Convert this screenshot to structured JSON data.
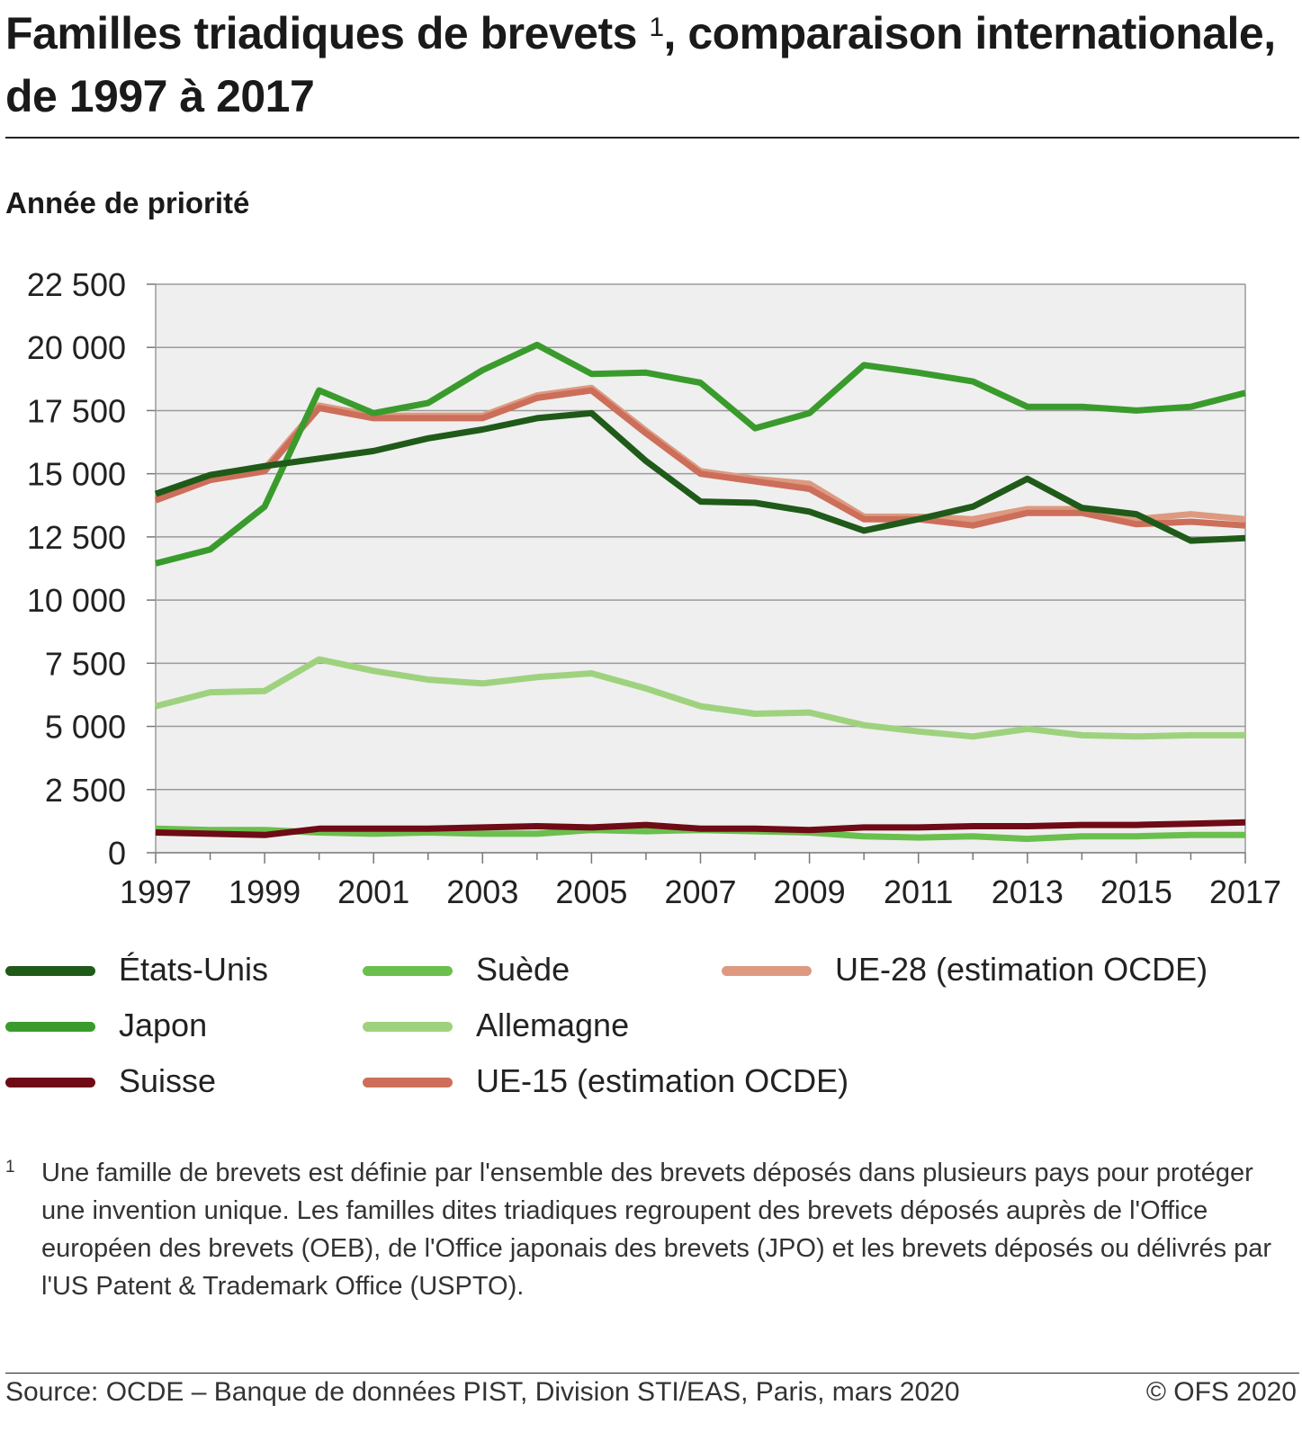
{
  "header": {
    "title_part1": "Familles triadiques de brevets ",
    "title_sup": "1",
    "title_part2": ", comparaison internationale, de 1997 à 2017",
    "subtitle": "Année de priorité"
  },
  "chart_data": {
    "type": "line",
    "ylim": [
      0,
      22500
    ],
    "y_ticks": [
      0,
      2500,
      5000,
      7500,
      10000,
      12500,
      15000,
      17500,
      20000,
      22500
    ],
    "y_tick_labels": [
      "0",
      "2 500",
      "5 000",
      "7 500",
      "10 000",
      "12 500",
      "15 000",
      "17 500",
      "20 000",
      "22 500"
    ],
    "x": [
      1997,
      1998,
      1999,
      2000,
      2001,
      2002,
      2003,
      2004,
      2005,
      2006,
      2007,
      2008,
      2009,
      2010,
      2011,
      2012,
      2013,
      2014,
      2015,
      2016,
      2017
    ],
    "x_tick_labels": [
      "1997",
      "1999",
      "2001",
      "2003",
      "2005",
      "2007",
      "2009",
      "2011",
      "2013",
      "2015",
      "2017"
    ],
    "grid": "horizontal",
    "legend_position": "bottom",
    "series": [
      {
        "name": "UE-28 (estimation OCDE)",
        "color": "#dd9a80",
        "values": [
          14000,
          14800,
          15200,
          17700,
          17300,
          17300,
          17300,
          18100,
          18400,
          16700,
          15100,
          14800,
          14600,
          13300,
          13300,
          13200,
          13600,
          13600,
          13200,
          13400,
          13200
        ]
      },
      {
        "name": "UE-15 (estimation OCDE)",
        "color": "#cc6e5a",
        "values": [
          13950,
          14750,
          15100,
          17600,
          17200,
          17200,
          17200,
          18000,
          18300,
          16600,
          15000,
          14700,
          14400,
          13200,
          13200,
          12950,
          13450,
          13450,
          13000,
          13100,
          12950
        ]
      },
      {
        "name": "Allemagne",
        "color": "#9fd27e",
        "values": [
          5800,
          6350,
          6400,
          7650,
          7200,
          6850,
          6700,
          6950,
          7100,
          6500,
          5800,
          5500,
          5550,
          5050,
          4800,
          4600,
          4900,
          4650,
          4600,
          4650,
          4650
        ]
      },
      {
        "name": "Suède",
        "color": "#6bbf4e",
        "values": [
          950,
          900,
          900,
          800,
          750,
          800,
          750,
          750,
          900,
          850,
          900,
          850,
          800,
          650,
          600,
          650,
          550,
          650,
          650,
          700,
          700
        ]
      },
      {
        "name": "Suisse",
        "color": "#6e0b16",
        "values": [
          800,
          750,
          700,
          950,
          950,
          950,
          1000,
          1050,
          1000,
          1100,
          950,
          950,
          900,
          1000,
          1000,
          1050,
          1050,
          1100,
          1100,
          1150,
          1200
        ]
      },
      {
        "name": "Japon",
        "color": "#3a9b2d",
        "values": [
          11450,
          12000,
          13700,
          18300,
          17400,
          17800,
          19100,
          20100,
          18950,
          19000,
          18600,
          16800,
          17400,
          19300,
          19000,
          18650,
          17650,
          17650,
          17500,
          17650,
          18200
        ]
      },
      {
        "name": "États-Unis",
        "color": "#1f5a19",
        "values": [
          14200,
          14950,
          15300,
          15600,
          15900,
          16400,
          16750,
          17200,
          17400,
          15500,
          13900,
          13850,
          13500,
          12750,
          13200,
          13700,
          14800,
          13650,
          13400,
          12350,
          12450
        ]
      }
    ]
  },
  "legend": [
    {
      "label": "États-Unis",
      "color": "#1f5a19"
    },
    {
      "label": "Japon",
      "color": "#3a9b2d"
    },
    {
      "label": "Suisse",
      "color": "#6e0b16"
    },
    {
      "label": "Suède",
      "color": "#6bbf4e"
    },
    {
      "label": "Allemagne",
      "color": "#9fd27e"
    },
    {
      "label": "UE-15 (estimation OCDE)",
      "color": "#cc6e5a"
    },
    {
      "label": "UE-28 (estimation OCDE)",
      "color": "#dd9a80"
    }
  ],
  "footnote": {
    "mark": "1",
    "text": "Une famille de brevets est définie par l'ensemble des brevets déposés dans plusieurs pays pour protéger une invention unique. Les familles dites triadiques regroupent des brevets déposés auprès de l'Office européen des brevets (OEB), de l'Office japonais des brevets (JPO) et les brevets déposés ou délivrés par l'US Patent & Trademark Office (USPTO)."
  },
  "source": "Source: OCDE – Banque de données PIST, Division STI/EAS, Paris, mars 2020",
  "copyright": "© OFS 2020"
}
